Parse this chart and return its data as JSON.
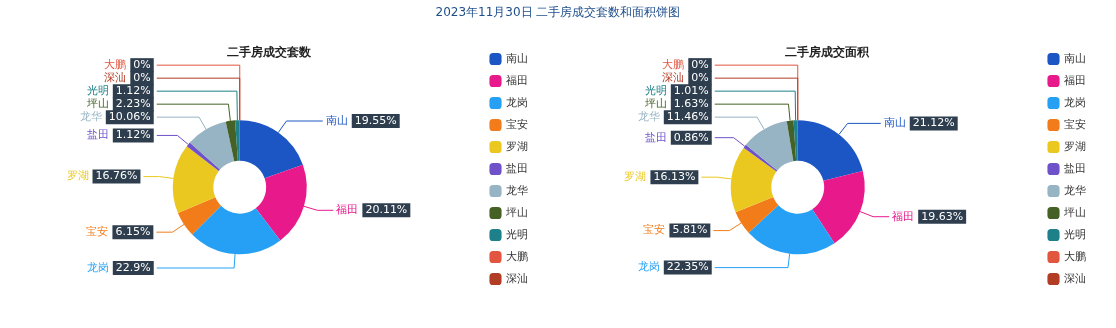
{
  "chart_data": [
    {
      "type": "donut",
      "title": "二手房成交套数",
      "annotations": [
        "2023年11月30日 二手房成交套数和面积饼图"
      ],
      "legend": "right",
      "categories": [
        "南山",
        "福田",
        "龙岗",
        "宝安",
        "罗湖",
        "盐田",
        "龙华",
        "坪山",
        "光明",
        "大鹏",
        "深汕"
      ],
      "values": [
        19.55,
        20.11,
        22.9,
        6.15,
        16.76,
        1.12,
        10.06,
        2.23,
        1.12,
        0,
        0
      ],
      "value_labels": [
        "19.55%",
        "20.11%",
        "22.9%",
        "6.15%",
        "16.76%",
        "1.12%",
        "10.06%",
        "2.23%",
        "1.12%",
        "0%",
        "0%"
      ],
      "colors": [
        "#1c56c4",
        "#e8198b",
        "#26a0f4",
        "#f27c1a",
        "#ebc81f",
        "#6f52c9",
        "#97b4c4",
        "#456126",
        "#1e8088",
        "#e2553f",
        "#b23c24"
      ]
    },
    {
      "type": "donut",
      "title": "二手房成交面积",
      "legend": "right",
      "categories": [
        "南山",
        "福田",
        "龙岗",
        "宝安",
        "罗湖",
        "盐田",
        "龙华",
        "坪山",
        "光明",
        "大鹏",
        "深汕"
      ],
      "values": [
        21.12,
        19.63,
        22.35,
        5.81,
        16.13,
        0.86,
        11.46,
        1.63,
        1.01,
        0,
        0
      ],
      "value_labels": [
        "21.12%",
        "19.63%",
        "22.35%",
        "5.81%",
        "16.13%",
        "0.86%",
        "11.46%",
        "1.63%",
        "1.01%",
        "0%",
        "0%"
      ],
      "colors": [
        "#1c56c4",
        "#e8198b",
        "#26a0f4",
        "#f27c1a",
        "#ebc81f",
        "#6f52c9",
        "#97b4c4",
        "#456126",
        "#1e8088",
        "#e2553f",
        "#b23c24"
      ]
    }
  ]
}
